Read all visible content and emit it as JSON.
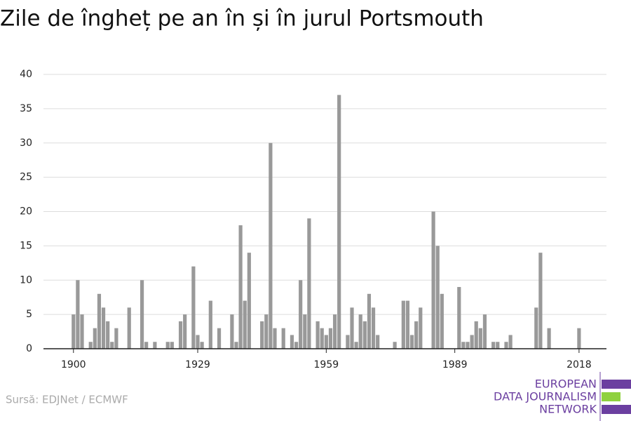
{
  "chart_data": {
    "type": "bar",
    "title": "Zile de îngheț pe an în și în jurul Portsmouth",
    "source": "Sursă: EDJNet / ECMWF",
    "logo": [
      "EUROPEAN",
      "DATA JOURNALISM",
      "NETWORK"
    ],
    "color": "#999999",
    "x": [
      1900,
      1901,
      1902,
      1903,
      1904,
      1905,
      1906,
      1907,
      1908,
      1909,
      1910,
      1911,
      1912,
      1913,
      1914,
      1915,
      1916,
      1917,
      1918,
      1919,
      1920,
      1921,
      1922,
      1923,
      1924,
      1925,
      1926,
      1927,
      1928,
      1929,
      1930,
      1931,
      1932,
      1933,
      1934,
      1935,
      1936,
      1937,
      1938,
      1939,
      1940,
      1941,
      1942,
      1943,
      1944,
      1945,
      1946,
      1947,
      1948,
      1949,
      1950,
      1951,
      1952,
      1953,
      1954,
      1955,
      1956,
      1957,
      1958,
      1959,
      1960,
      1961,
      1962,
      1963,
      1964,
      1965,
      1966,
      1967,
      1968,
      1969,
      1970,
      1971,
      1972,
      1973,
      1974,
      1975,
      1976,
      1977,
      1978,
      1979,
      1980,
      1981,
      1982,
      1983,
      1984,
      1985,
      1986,
      1987,
      1988,
      1989,
      1990,
      1991,
      1992,
      1993,
      1994,
      1995,
      1996,
      1997,
      1998,
      1999,
      2000,
      2001,
      2002,
      2003,
      2004,
      2005,
      2006,
      2007,
      2008,
      2009,
      2010,
      2011,
      2012,
      2013,
      2014,
      2015,
      2016,
      2017,
      2018,
      2019
    ],
    "values": [
      5,
      10,
      5,
      0,
      1,
      3,
      8,
      6,
      4,
      1,
      3,
      0,
      0,
      6,
      0,
      0,
      10,
      1,
      0,
      1,
      0,
      0,
      1,
      1,
      0,
      4,
      5,
      0,
      12,
      2,
      1,
      0,
      7,
      0,
      3,
      0,
      0,
      5,
      1,
      18,
      7,
      14,
      0,
      0,
      4,
      5,
      30,
      3,
      0,
      3,
      0,
      2,
      1,
      10,
      5,
      19,
      0,
      4,
      3,
      2,
      3,
      5,
      37,
      0,
      2,
      6,
      1,
      5,
      4,
      8,
      6,
      2,
      0,
      0,
      0,
      1,
      0,
      7,
      7,
      2,
      4,
      6,
      0,
      0,
      20,
      15,
      8,
      0,
      0,
      0,
      9,
      1,
      1,
      2,
      4,
      3,
      5,
      0,
      1,
      1,
      0,
      1,
      2,
      0,
      0,
      0,
      0,
      0,
      6,
      14,
      0,
      3,
      0,
      0,
      0,
      0,
      0,
      0,
      3,
      0
    ],
    "xlim": [
      1893,
      2024.4
    ],
    "xticks": [
      1900,
      1929,
      1959,
      1989,
      2018
    ],
    "ylim": [
      0,
      40
    ],
    "yticks": [
      0,
      5,
      10,
      15,
      20,
      25,
      30,
      35,
      40
    ],
    "grid": true
  }
}
